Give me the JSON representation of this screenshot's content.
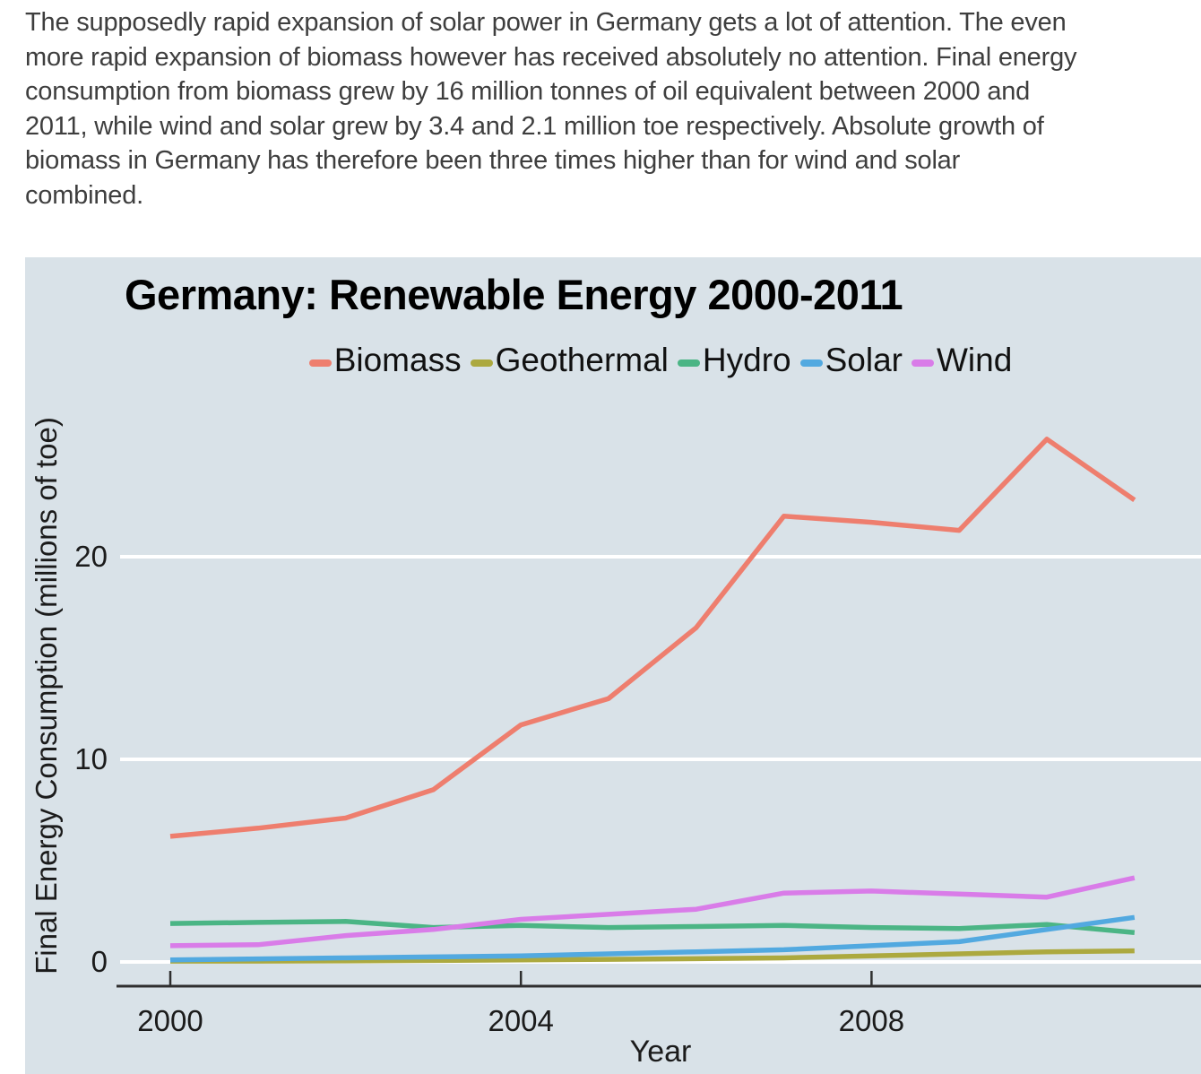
{
  "intro": {
    "lines": [
      "The supposedly rapid expansion of solar power in Germany gets a lot of attention. The even",
      "more rapid expansion of biomass however has received absolutely no attention. Final energy",
      "consumption from biomass grew by 16 million tonnes of oil equivalent between 2000 and",
      "2011, while wind and solar grew by 3.4 and 2.1 million toe respectively. Absolute growth of",
      "biomass in Germany has therefore been three times higher than for wind and solar",
      "combined."
    ]
  },
  "chart_data": {
    "type": "line",
    "title": "Germany: Renewable Energy 2000-2011",
    "xlabel": "Year",
    "ylabel": "Final Energy Consumption (millions of toe)",
    "x": [
      2000,
      2001,
      2002,
      2003,
      2004,
      2005,
      2006,
      2007,
      2008,
      2009,
      2010,
      2011
    ],
    "x_ticks": [
      2000,
      2004,
      2008
    ],
    "y_ticks": [
      0,
      10,
      20
    ],
    "xlim": [
      2000,
      2011
    ],
    "ylim": [
      0,
      27.5
    ],
    "grid": "horizontal",
    "legend_position": "top-center",
    "panel_background": "#d9e2e8",
    "gridline_color": "#ffffff",
    "axis_color": "#2f2f2f",
    "series": [
      {
        "name": "Biomass",
        "color": "#ee7e6e",
        "values": [
          6.2,
          6.6,
          7.1,
          8.5,
          11.7,
          13.0,
          16.5,
          22.0,
          21.7,
          21.3,
          25.8,
          22.8
        ]
      },
      {
        "name": "Geothermal",
        "color": "#aca93f",
        "values": [
          0.04,
          0.04,
          0.05,
          0.07,
          0.1,
          0.13,
          0.16,
          0.2,
          0.3,
          0.4,
          0.5,
          0.55
        ]
      },
      {
        "name": "Hydro",
        "color": "#4bb585",
        "values": [
          1.9,
          1.95,
          2.0,
          1.7,
          1.8,
          1.7,
          1.75,
          1.8,
          1.7,
          1.65,
          1.85,
          1.45
        ]
      },
      {
        "name": "Solar",
        "color": "#52a9e0",
        "values": [
          0.1,
          0.15,
          0.2,
          0.25,
          0.3,
          0.4,
          0.5,
          0.6,
          0.8,
          1.0,
          1.6,
          2.2
        ]
      },
      {
        "name": "Wind",
        "color": "#d97ce8",
        "values": [
          0.8,
          0.85,
          1.3,
          1.6,
          2.1,
          2.35,
          2.6,
          3.4,
          3.5,
          3.35,
          3.2,
          4.15
        ]
      }
    ]
  }
}
